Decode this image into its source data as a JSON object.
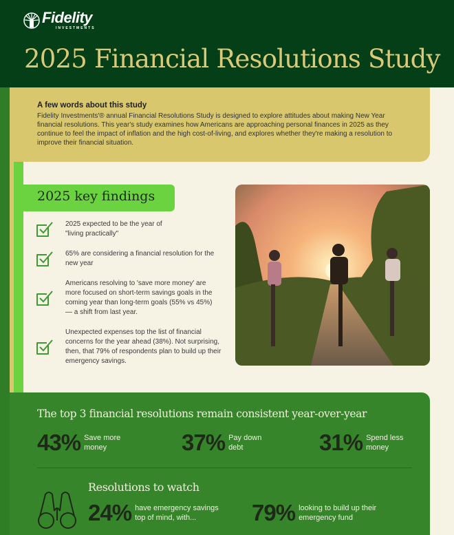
{
  "brand": {
    "logo_text": "Fidelity",
    "logo_subtext": "INVESTMENTS"
  },
  "header": {
    "title": "2025 Financial Resolutions Study"
  },
  "about": {
    "heading": "A few words about this study",
    "body": "Fidelity Investments'® annual Financial Resolutions Study is designed to explore attitudes about making New Year financial resolutions. This year's study examines how Americans are approaching personal finances in 2025 as they continue to feel the impact of inflation and the high cost-of-living, and explores whether they're making a resolution to improve their financial situation."
  },
  "key_findings": {
    "heading": "2025 key findings",
    "items": [
      "2025 expected to be the year of \"living practically\"",
      "65% are considering a financial resolution for the new year",
      "Americans resolving to 'save more money' are more focused on short-term savings goals in the coming year than long-term goals (55% vs 45%) — a shift from last year.",
      "Unexpected expenses top the list of financial concerns for the year ahead (38%). Not surprising, then, that 79% of respondents plan to build up their emergency savings."
    ]
  },
  "top3": {
    "heading": "The top 3 financial resolutions remain consistent year-over-year",
    "items": [
      {
        "value": "43%",
        "label": "Save more money"
      },
      {
        "value": "37%",
        "label": "Pay down debt"
      },
      {
        "value": "31%",
        "label": "Spend less money"
      }
    ]
  },
  "watch": {
    "heading": "Resolutions to watch",
    "icon": "binoculars-icon",
    "items": [
      {
        "value": "24%",
        "label": "have emergency savings top of mind, with..."
      },
      {
        "value": "79%",
        "label": "looking to build up their emergency fund"
      }
    ]
  },
  "colors": {
    "header": "#053f18",
    "gold": "#d9c76e",
    "bright_green": "#6bd33f",
    "panel_green": "#37852b"
  }
}
